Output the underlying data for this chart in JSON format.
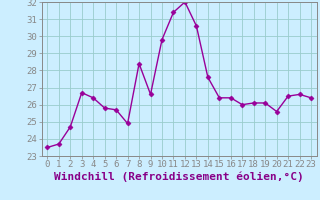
{
  "x": [
    0,
    1,
    2,
    3,
    4,
    5,
    6,
    7,
    8,
    9,
    10,
    11,
    12,
    13,
    14,
    15,
    16,
    17,
    18,
    19,
    20,
    21,
    22,
    23
  ],
  "y": [
    23.5,
    23.7,
    24.7,
    26.7,
    26.4,
    25.8,
    25.7,
    24.9,
    28.4,
    26.6,
    29.8,
    31.4,
    32.0,
    30.6,
    27.6,
    26.4,
    26.4,
    26.0,
    26.1,
    26.1,
    25.6,
    26.5,
    26.6,
    26.4
  ],
  "line_color": "#990099",
  "marker": "D",
  "marker_size": 2.5,
  "xlabel": "Windchill (Refroidissement éolien,°C)",
  "background_color": "#cceeff",
  "grid_color": "#99cccc",
  "ylim": [
    23,
    32
  ],
  "xlim": [
    -0.5,
    23.5
  ],
  "yticks": [
    23,
    24,
    25,
    26,
    27,
    28,
    29,
    30,
    31,
    32
  ],
  "xticks": [
    0,
    1,
    2,
    3,
    4,
    5,
    6,
    7,
    8,
    9,
    10,
    11,
    12,
    13,
    14,
    15,
    16,
    17,
    18,
    19,
    20,
    21,
    22,
    23
  ],
  "tick_labelsize": 6.5,
  "xlabel_fontsize": 8,
  "line_width": 1.0,
  "spine_color": "#888888",
  "label_color": "#880088"
}
